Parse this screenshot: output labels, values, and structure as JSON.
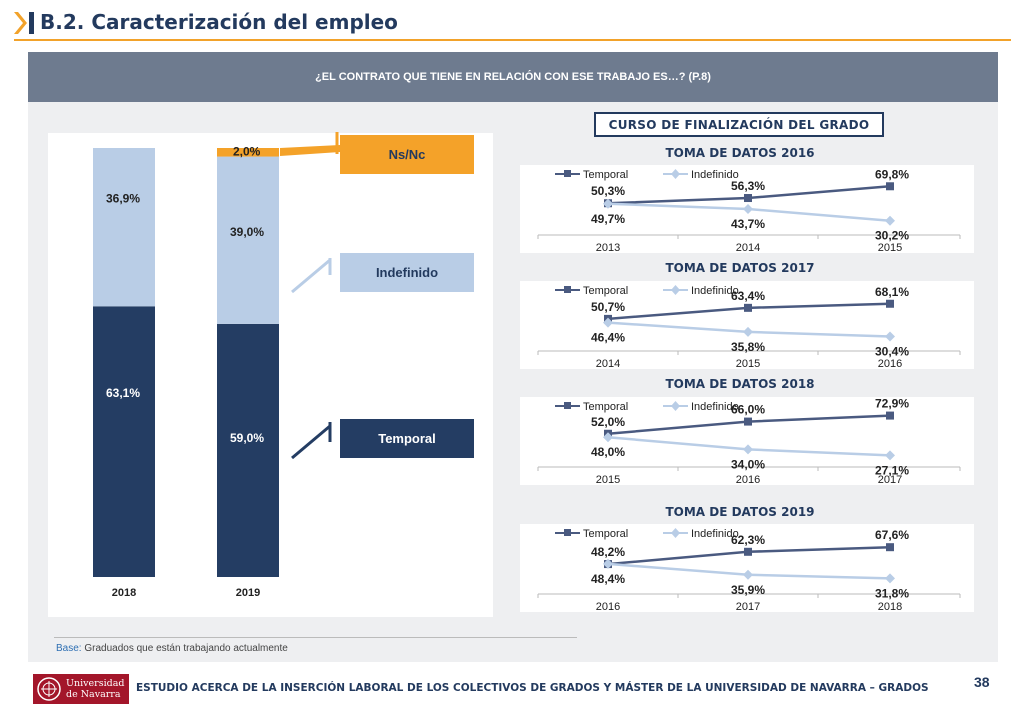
{
  "header": {
    "title": "B.2. Caracterización del empleo"
  },
  "question": "¿EL CONTRATO QUE TIENE EN RELACIÓN CON ESE TRABAJO ES…? (P.8)",
  "course_box": "CURSO DE FINALIZACIÓN DEL GRADO",
  "legend_boxes": {
    "nsnc": "Ns/Nc",
    "indefinido": "Indefinido",
    "temporal": "Temporal"
  },
  "colors": {
    "temporal": "#243d63",
    "indefinido": "#b9cde6",
    "nsnc": "#f4a229",
    "accent": "#f2a22a",
    "line_temporal": "#4a5a80",
    "line_indefinido": "#b9cde6"
  },
  "chart_data": [
    {
      "type": "bar",
      "stacked": true,
      "categories": [
        "2018",
        "2019"
      ],
      "series": [
        {
          "name": "Temporal",
          "values": [
            63.1,
            59.0
          ],
          "labels": [
            "63,1%",
            "59,0%"
          ]
        },
        {
          "name": "Indefinido",
          "values": [
            36.9,
            39.0
          ],
          "labels": [
            "36,9%",
            "39,0%"
          ]
        },
        {
          "name": "Ns/Nc",
          "values": [
            0,
            2.0
          ],
          "labels": [
            "",
            "2,0%"
          ]
        }
      ],
      "ylim": [
        0,
        100
      ]
    },
    {
      "type": "line",
      "title": "TOMA DE DATOS 2016",
      "x": [
        "2013",
        "2014",
        "2015"
      ],
      "series": [
        {
          "name": "Temporal",
          "values": [
            50.3,
            56.3,
            69.8
          ],
          "labels": [
            "50,3%",
            "56,3%",
            "69,8%"
          ]
        },
        {
          "name": "Indefinido",
          "values": [
            49.7,
            43.7,
            30.2
          ],
          "labels": [
            "49,7%",
            "43,7%",
            "30,2%"
          ]
        }
      ]
    },
    {
      "type": "line",
      "title": "TOMA DE DATOS 2017",
      "x": [
        "2014",
        "2015",
        "2016"
      ],
      "series": [
        {
          "name": "Temporal",
          "values": [
            50.7,
            63.4,
            68.1
          ],
          "labels": [
            "50,7%",
            "63,4%",
            "68,1%"
          ]
        },
        {
          "name": "Indefinido",
          "values": [
            46.4,
            35.8,
            30.4
          ],
          "labels": [
            "46,4%",
            "35,8%",
            "30,4%"
          ]
        }
      ]
    },
    {
      "type": "line",
      "title": "TOMA DE DATOS 2018",
      "x": [
        "2015",
        "2016",
        "2017"
      ],
      "series": [
        {
          "name": "Temporal",
          "values": [
            52.0,
            66.0,
            72.9
          ],
          "labels": [
            "52,0%",
            "66,0%",
            "72,9%"
          ]
        },
        {
          "name": "Indefinido",
          "values": [
            48.0,
            34.0,
            27.1
          ],
          "labels": [
            "48,0%",
            "34,0%",
            "27,1%"
          ]
        }
      ]
    },
    {
      "type": "line",
      "title": "TOMA DE DATOS 2019",
      "x": [
        "2016",
        "2017",
        "2018"
      ],
      "series": [
        {
          "name": "Temporal",
          "values": [
            48.2,
            62.3,
            67.6
          ],
          "labels": [
            "48,2%",
            "62,3%",
            "67,6%"
          ]
        },
        {
          "name": "Indefinido",
          "values": [
            48.4,
            35.9,
            31.8
          ],
          "labels": [
            "48,4%",
            "35,9%",
            "31,8%"
          ]
        }
      ]
    }
  ],
  "footer": {
    "base_label": "Base:",
    "base_text": "Graduados que están trabajando actualmente",
    "logo_line1": "Universidad",
    "logo_line2": "de Navarra",
    "study_text": "ESTUDIO ACERCA DE LA INSERCIÓN LABORAL DE LOS COLECTIVOS DE GRADOS Y MÁSTER DE LA UNIVERSIDAD DE NAVARRA – GRADOS",
    "page_number": "38"
  }
}
